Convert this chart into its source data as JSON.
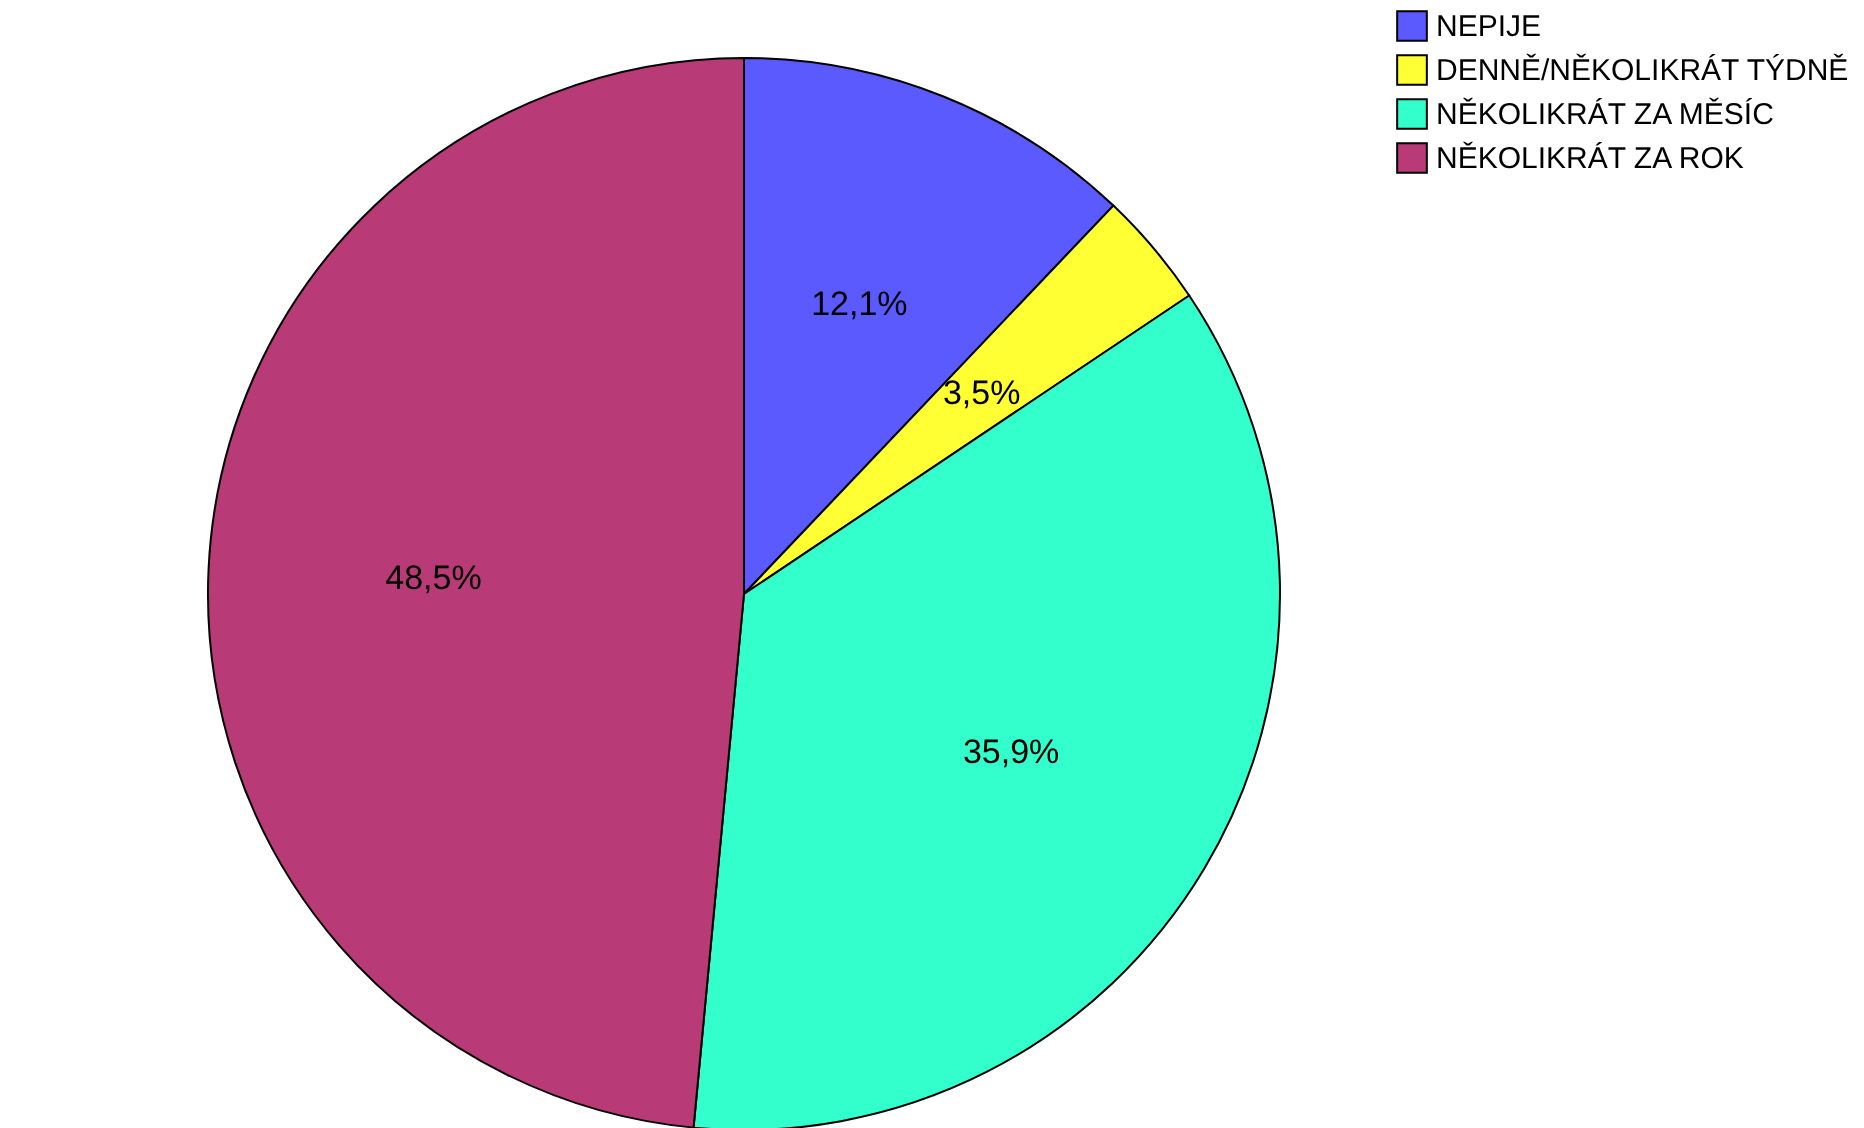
{
  "chart_data": {
    "type": "pie",
    "categories": [
      "NEPIJE",
      "DENNĚ/NĚKOLIKRÁT TÝDNĚ",
      "NĚKOLIKRÁT ZA MĚSÍC",
      "NĚKOLIKRÁT ZA ROK"
    ],
    "values": [
      12.1,
      3.5,
      35.9,
      48.5
    ],
    "value_labels": [
      "12,1%",
      "3,5%",
      "35,9%",
      "48,5%"
    ],
    "colors": [
      "#5a5aff",
      "#ffff33",
      "#33ffcc",
      "#b83b77"
    ],
    "legend": "top right"
  }
}
